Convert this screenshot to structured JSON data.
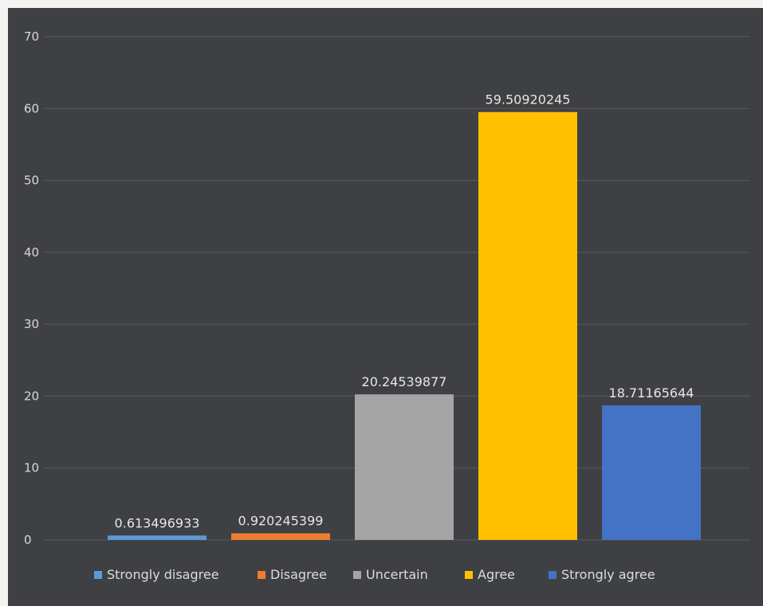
{
  "chart_data": {
    "type": "bar",
    "title": "",
    "xlabel": "",
    "ylabel": "",
    "ylim": [
      0,
      70
    ],
    "yticks": [
      0,
      10,
      20,
      30,
      40,
      50,
      60,
      70
    ],
    "grid": true,
    "legend_placement": "bottom",
    "categories": [
      "Strongly disagree",
      "Disagree",
      "Uncertain",
      "Agree",
      "Strongly agree"
    ],
    "values": [
      0.613496933,
      0.920245399,
      20.24539877,
      59.50920245,
      18.71165644
    ],
    "data_labels": [
      "0.613496933",
      "0.920245399",
      "20.24539877",
      "59.50920245",
      "18.71165644"
    ],
    "colors": [
      "#5b9bd5",
      "#ed7d31",
      "#a5a5a5",
      "#ffc000",
      "#4472c4"
    ]
  }
}
